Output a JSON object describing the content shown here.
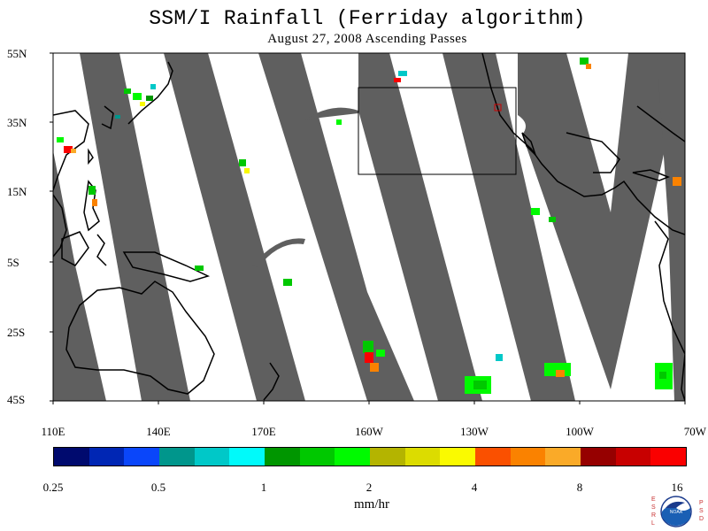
{
  "header": {
    "title": "SSM/I Rainfall (Ferriday algorithm)",
    "subtitle": "August 27, 2008  Ascending Passes"
  },
  "map": {
    "lat_labels": [
      "55N",
      "35N",
      "15N",
      "5S",
      "25S",
      "45S"
    ],
    "lon_labels": [
      "110E",
      "140E",
      "170E",
      "160W",
      "130W",
      "100W",
      "70W"
    ],
    "colors": {
      "no_data_swath_gap": "#5f5f5f",
      "ocean_no_rain": "#ffffff",
      "coastline": "#000000",
      "box": "#000000",
      "marker": "#cc0000"
    }
  },
  "colorbar": {
    "units": "mm/hr",
    "tick_labels": [
      "0.25",
      "0.5",
      "1",
      "2",
      "4",
      "8",
      "16"
    ],
    "colors": [
      "#000a6e",
      "#0026b4",
      "#0a46fa",
      "#00968c",
      "#00c8c8",
      "#00fafa",
      "#009600",
      "#00c800",
      "#00fa00",
      "#b4b400",
      "#dcdc00",
      "#fafa00",
      "#fa5000",
      "#fa8200",
      "#faaa28",
      "#960000",
      "#c80000",
      "#fa0000"
    ]
  },
  "logo": {
    "left_letters": "ESRL",
    "right_letters": "PSD",
    "emblem_text": "NOAA"
  }
}
